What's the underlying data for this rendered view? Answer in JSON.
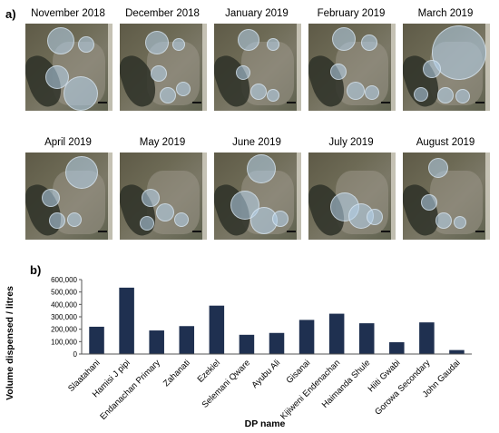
{
  "panel_a_label": "a)",
  "panel_b_label": "b)",
  "maps": [
    {
      "title": "November 2018"
    },
    {
      "title": "December 2018"
    },
    {
      "title": "January 2019"
    },
    {
      "title": "February 2019"
    },
    {
      "title": "March 2019"
    },
    {
      "title": "April 2019"
    },
    {
      "title": "May 2019"
    },
    {
      "title": "June 2019"
    },
    {
      "title": "July 2019"
    },
    {
      "title": "August 2019"
    }
  ],
  "chart_data": {
    "type": "bar",
    "xlabel": "DP name",
    "ylabel": "Volume dispensed / litres",
    "ylim": [
      0,
      600000
    ],
    "yticks": [
      "0",
      "100,000",
      "200,000",
      "300,000",
      "400,000",
      "500,000",
      "600,000"
    ],
    "grid": false,
    "bar_color": "#1f3050",
    "categories": [
      "Slaatahani",
      "Hamisi J pipi",
      "Endanachan Primary",
      "Zahanati",
      "Ezekiel",
      "Selemani Qware",
      "Ayubu Ali",
      "Gisanai",
      "Kijiweni Endenachan",
      "Haimanda Shule",
      "Hiiti Gwabi",
      "Gorowa Secondary",
      "John Gaudai"
    ],
    "values": [
      220000,
      535000,
      190000,
      225000,
      390000,
      155000,
      170000,
      275000,
      325000,
      248000,
      95000,
      255000,
      32000
    ]
  }
}
